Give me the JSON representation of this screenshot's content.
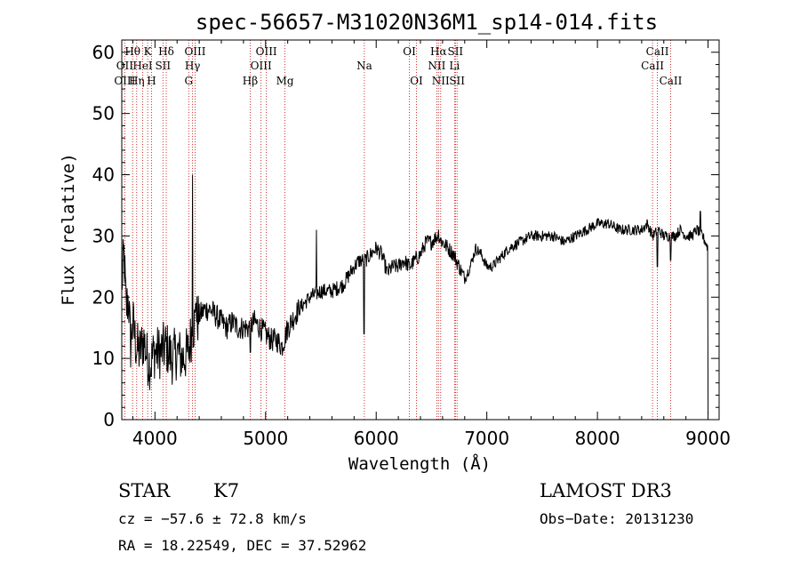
{
  "chart_data": {
    "type": "line",
    "title": "spec-56657-M31020N36M1_sp14-014.fits",
    "xlabel": "Wavelength (Å)",
    "ylabel": "Flux (relative)",
    "xlim": [
      3700,
      9100
    ],
    "ylim": [
      0,
      62
    ],
    "xticks": [
      4000,
      5000,
      6000,
      7000,
      8000,
      9000
    ],
    "yticks": [
      0,
      10,
      20,
      30,
      40,
      50,
      60
    ],
    "spectrum_anchors": [
      [
        3700,
        22
      ],
      [
        3720,
        27
      ],
      [
        3740,
        18
      ],
      [
        3760,
        20
      ],
      [
        3780,
        12
      ],
      [
        3800,
        16
      ],
      [
        3830,
        12
      ],
      [
        3860,
        11
      ],
      [
        3900,
        13
      ],
      [
        3930,
        10
      ],
      [
        3960,
        9
      ],
      [
        3990,
        11
      ],
      [
        4050,
        11
      ],
      [
        4100,
        12
      ],
      [
        4150,
        10
      ],
      [
        4200,
        11
      ],
      [
        4250,
        10
      ],
      [
        4300,
        11
      ],
      [
        4340,
        15
      ],
      [
        4400,
        17
      ],
      [
        4450,
        18
      ],
      [
        4500,
        18
      ],
      [
        4550,
        17
      ],
      [
        4600,
        16
      ],
      [
        4650,
        15
      ],
      [
        4700,
        16
      ],
      [
        4750,
        15
      ],
      [
        4800,
        15
      ],
      [
        4850,
        15
      ],
      [
        4900,
        16
      ],
      [
        4950,
        15
      ],
      [
        5000,
        14
      ],
      [
        5050,
        13
      ],
      [
        5100,
        13
      ],
      [
        5150,
        12
      ],
      [
        5200,
        15
      ],
      [
        5300,
        18
      ],
      [
        5400,
        20
      ],
      [
        5500,
        21
      ],
      [
        5600,
        21
      ],
      [
        5700,
        22
      ],
      [
        5800,
        25
      ],
      [
        5850,
        26
      ],
      [
        5900,
        26
      ],
      [
        5950,
        27
      ],
      [
        6000,
        28
      ],
      [
        6050,
        27
      ],
      [
        6100,
        24
      ],
      [
        6150,
        25
      ],
      [
        6200,
        25
      ],
      [
        6250,
        26
      ],
      [
        6300,
        25
      ],
      [
        6350,
        26
      ],
      [
        6400,
        27
      ],
      [
        6450,
        29
      ],
      [
        6500,
        29
      ],
      [
        6550,
        30
      ],
      [
        6600,
        29
      ],
      [
        6650,
        28
      ],
      [
        6700,
        27
      ],
      [
        6750,
        25
      ],
      [
        6800,
        23
      ],
      [
        6850,
        25
      ],
      [
        6900,
        28
      ],
      [
        6950,
        27
      ],
      [
        7000,
        25
      ],
      [
        7050,
        25
      ],
      [
        7100,
        26
      ],
      [
        7150,
        27
      ],
      [
        7200,
        28
      ],
      [
        7300,
        29
      ],
      [
        7400,
        30
      ],
      [
        7500,
        30
      ],
      [
        7600,
        30
      ],
      [
        7700,
        29
      ],
      [
        7800,
        30
      ],
      [
        7900,
        31
      ],
      [
        8000,
        32
      ],
      [
        8100,
        32
      ],
      [
        8200,
        31
      ],
      [
        8300,
        31
      ],
      [
        8400,
        31
      ],
      [
        8450,
        32
      ],
      [
        8500,
        30
      ],
      [
        8550,
        31
      ],
      [
        8600,
        30
      ],
      [
        8650,
        30
      ],
      [
        8700,
        30
      ],
      [
        8750,
        31
      ],
      [
        8800,
        30
      ],
      [
        8850,
        30
      ],
      [
        8900,
        31
      ],
      [
        8950,
        30
      ],
      [
        9000,
        28
      ]
    ],
    "spectrum_features": [
      [
        4340,
        40
      ],
      [
        4370,
        19
      ],
      [
        4862,
        11
      ],
      [
        5460,
        31
      ],
      [
        5890,
        14
      ],
      [
        6563,
        31
      ],
      [
        8542,
        25
      ],
      [
        8662,
        26
      ],
      [
        8930,
        34
      ],
      [
        9000,
        1
      ]
    ],
    "spectral_lines": [
      {
        "label": "Hθ",
        "wl": 3798,
        "row": 1
      },
      {
        "label": "OII",
        "wl": 3727,
        "row": 2
      },
      {
        "label": "OIII",
        "wl": 3727,
        "row": 3
      },
      {
        "label": "K",
        "wl": 3934,
        "row": 1
      },
      {
        "label": "HeI",
        "wl": 3889,
        "row": 2
      },
      {
        "label": "Hη",
        "wl": 3835,
        "row": 3
      },
      {
        "label": "Hδ",
        "wl": 4102,
        "row": 1
      },
      {
        "label": "SII",
        "wl": 4072,
        "row": 2
      },
      {
        "label": "H",
        "wl": 3969,
        "row": 3
      },
      {
        "label": "OIII",
        "wl": 4363,
        "row": 1
      },
      {
        "label": "Hγ",
        "wl": 4340,
        "row": 2
      },
      {
        "label": "G",
        "wl": 4305,
        "row": 3
      },
      {
        "label": "OIII",
        "wl": 5007,
        "row": 1
      },
      {
        "label": "OIII",
        "wl": 4959,
        "row": 2
      },
      {
        "label": "Hβ",
        "wl": 4861,
        "row": 3
      },
      {
        "label": "Mg",
        "wl": 5175,
        "row": 3
      },
      {
        "label": "Na",
        "wl": 5893,
        "row": 2
      },
      {
        "label": "OI",
        "wl": 6300,
        "row": 1
      },
      {
        "label": "OI",
        "wl": 6364,
        "row": 3
      },
      {
        "label": "Hα",
        "wl": 6563,
        "row": 1
      },
      {
        "label": "SII",
        "wl": 6716,
        "row": 1
      },
      {
        "label": "NII",
        "wl": 6548,
        "row": 2
      },
      {
        "label": "Li",
        "wl": 6708,
        "row": 2
      },
      {
        "label": "NII",
        "wl": 6583,
        "row": 3
      },
      {
        "label": "SII",
        "wl": 6731,
        "row": 3
      },
      {
        "label": "CaII",
        "wl": 8542,
        "row": 1
      },
      {
        "label": "CaII",
        "wl": 8498,
        "row": 2
      },
      {
        "label": "CaII",
        "wl": 8662,
        "row": 3
      }
    ]
  },
  "info": {
    "class": "STAR",
    "subclass": "K7",
    "survey": "LAMOST DR3",
    "cz": "cz = −57.6 ± 72.8 km/s",
    "obs_date": "Obs−Date: 20131230",
    "radec": "RA =  18.22549, DEC =  37.52962"
  },
  "colors": {
    "line_marker": "#cc0000",
    "spectrum": "#000000"
  }
}
